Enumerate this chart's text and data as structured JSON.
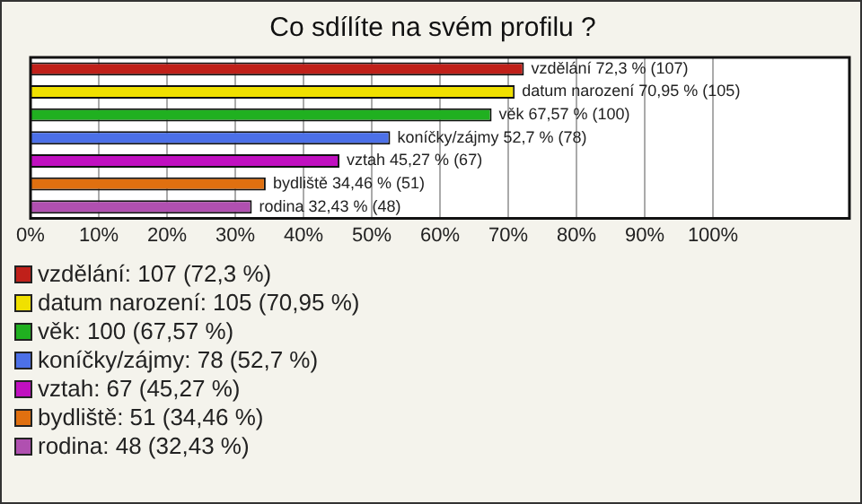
{
  "chart_data": {
    "type": "bar",
    "orientation": "horizontal",
    "stacked": true,
    "title": "Co sdílíte na svém profilu ?",
    "categories": [
      null,
      null,
      null,
      null,
      null,
      null,
      null
    ],
    "series": [
      {
        "name": "vzdělání: 107 (72,3 %)",
        "color": "#c0201a",
        "values": [
          72.3,
          null,
          null,
          null,
          null,
          null,
          null
        ],
        "value_labels": [
          "vzdělání 72,3 % (107)",
          null,
          null,
          null,
          null,
          null,
          null
        ]
      },
      {
        "name": "datum narození: 105 (70,95 %)",
        "color": "#f0e000",
        "values": [
          null,
          70.95,
          null,
          null,
          null,
          null,
          null
        ],
        "value_labels": [
          null,
          "datum narození 70,95 % (105)",
          null,
          null,
          null,
          null,
          null
        ]
      },
      {
        "name": "věk: 100 (67,57 %)",
        "color": "#20b020",
        "values": [
          null,
          null,
          67.57,
          null,
          null,
          null,
          null
        ],
        "value_labels": [
          null,
          null,
          "věk 67,57 % (100)",
          null,
          null,
          null,
          null
        ]
      },
      {
        "name": "koníčky/zájmy: 78 (52,7 %)",
        "color": "#4c70e8",
        "values": [
          null,
          null,
          null,
          52.7,
          null,
          null,
          null
        ],
        "value_labels": [
          null,
          null,
          null,
          "koníčky/zájmy 52,7 % (78)",
          null,
          null,
          null
        ]
      },
      {
        "name": "vztah: 67 (45,27 %)",
        "color": "#c010c0",
        "values": [
          null,
          null,
          null,
          null,
          45.27,
          null,
          null
        ],
        "value_labels": [
          null,
          null,
          null,
          null,
          "vztah 45,27 % (67)",
          null,
          null
        ]
      },
      {
        "name": "bydliště: 51 (34,46 %)",
        "color": "#e07010",
        "values": [
          null,
          null,
          null,
          null,
          null,
          34.46,
          null
        ],
        "value_labels": [
          null,
          null,
          null,
          null,
          null,
          "bydliště 34,46 % (51)",
          null
        ]
      },
      {
        "name": "rodina: 48 (32,43 %)",
        "color": "#b050b0",
        "values": [
          null,
          null,
          null,
          null,
          null,
          null,
          32.43
        ],
        "value_labels": [
          null,
          null,
          null,
          null,
          null,
          null,
          "rodina 32,43 % (48)"
        ]
      }
    ],
    "xlim": [
      0,
      120
    ],
    "xticks": [
      {
        "value": 0,
        "label": "0%"
      },
      {
        "value": 10,
        "label": "10%"
      },
      {
        "value": 20,
        "label": "20%"
      },
      {
        "value": 30,
        "label": "30%"
      },
      {
        "value": 40,
        "label": "40%"
      },
      {
        "value": 50,
        "label": "50%"
      },
      {
        "value": 60,
        "label": "60%"
      },
      {
        "value": 70,
        "label": "70%"
      },
      {
        "value": 80,
        "label": "80%"
      },
      {
        "value": 90,
        "label": "90%"
      },
      {
        "value": 100,
        "label": "100%"
      }
    ],
    "tick_labels": "x",
    "grid": "x",
    "legend": "bottom"
  }
}
